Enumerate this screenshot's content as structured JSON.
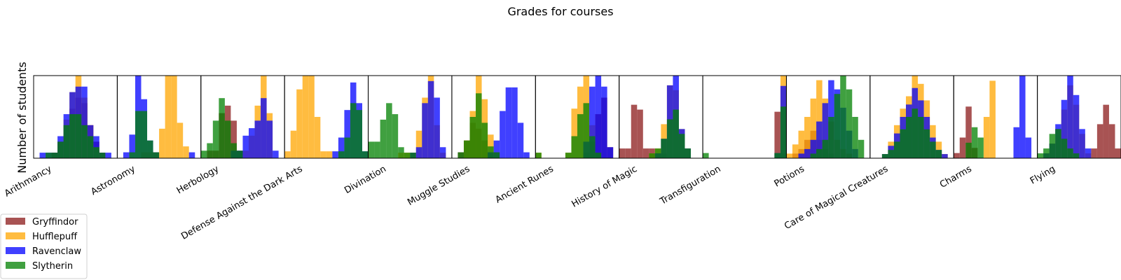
{
  "chart_data": {
    "type": "histogram",
    "title": "Grades for courses",
    "ylabel": "Number of students",
    "xlabel": "",
    "grid": false,
    "legend_position": "bottom-left",
    "series": [
      {
        "name": "Gryffindor",
        "color": "#8b1a1a"
      },
      {
        "name": "Hufflepuff",
        "color": "#ffa500"
      },
      {
        "name": "Ravenclaw",
        "color": "#0000ff"
      },
      {
        "name": "Slytherin",
        "color": "#008000"
      }
    ],
    "courses": [
      {
        "name": "Arithmancy",
        "bins": 14,
        "counts": [
          [
            0,
            0,
            0,
            1,
            3,
            6,
            9,
            11,
            10,
            6,
            3,
            1,
            0,
            0
          ],
          [
            0,
            0,
            0,
            1,
            3,
            7,
            12,
            15,
            11,
            6,
            2,
            1,
            0,
            0
          ],
          [
            0,
            1,
            1,
            1,
            4,
            8,
            12,
            13,
            13,
            6,
            4,
            1,
            1,
            0
          ],
          [
            0,
            0,
            1,
            1,
            3,
            6,
            8,
            8,
            6,
            4,
            2,
            1,
            0,
            0
          ]
        ]
      },
      {
        "name": "Astronomy",
        "bins": 14,
        "counts": [
          [
            0,
            0,
            0,
            0,
            0,
            0,
            0,
            0,
            0,
            0,
            0,
            0,
            0,
            0
          ],
          [
            0,
            0,
            0,
            0,
            1,
            1,
            1,
            5,
            14,
            14,
            6,
            2,
            0,
            0
          ],
          [
            0,
            1,
            4,
            14,
            10,
            3,
            1,
            0,
            0,
            0,
            0,
            0,
            1,
            0
          ],
          [
            0,
            0,
            1,
            8,
            8,
            3,
            1,
            0,
            0,
            0,
            0,
            0,
            0,
            0
          ]
        ]
      },
      {
        "name": "Herbology",
        "bins": 14,
        "counts": [
          [
            0,
            1,
            1,
            6,
            7,
            5,
            1,
            0,
            0,
            0,
            0,
            0,
            0,
            0
          ],
          [
            0,
            0,
            0,
            0,
            0,
            0,
            0,
            1,
            3,
            7,
            11,
            6,
            0,
            0
          ],
          [
            0,
            0,
            0,
            0,
            0,
            1,
            1,
            3,
            4,
            5,
            8,
            5,
            1,
            0
          ],
          [
            1,
            2,
            5,
            8,
            5,
            2,
            1,
            0,
            0,
            0,
            0,
            0,
            0,
            0
          ]
        ]
      },
      {
        "name": "Defense Against the Dark Arts",
        "bins": 14,
        "counts": [
          [
            0,
            0,
            0,
            0,
            0,
            0,
            0,
            0,
            0,
            0,
            0,
            0,
            0,
            0
          ],
          [
            1,
            4,
            10,
            12,
            12,
            6,
            1,
            1,
            0,
            0,
            0,
            0,
            0,
            0
          ],
          [
            0,
            0,
            0,
            0,
            0,
            0,
            0,
            0,
            1,
            3,
            7,
            11,
            8,
            1
          ],
          [
            0,
            0,
            0,
            0,
            0,
            0,
            0,
            0,
            0,
            1,
            3,
            8,
            7,
            1
          ]
        ]
      },
      {
        "name": "Divination",
        "bins": 14,
        "counts": [
          [
            0,
            0,
            0,
            0,
            0,
            0,
            0,
            0,
            0,
            0,
            0,
            0,
            0,
            0
          ],
          [
            0,
            0,
            0,
            0,
            0,
            1,
            1,
            1,
            5,
            11,
            15,
            6,
            1,
            0
          ],
          [
            0,
            0,
            0,
            0,
            0,
            0,
            0,
            1,
            2,
            10,
            14,
            11,
            2,
            0
          ],
          [
            3,
            3,
            7,
            10,
            8,
            2,
            1,
            1,
            0,
            0,
            0,
            0,
            0,
            0
          ]
        ]
      },
      {
        "name": "Muggle Studies",
        "bins": 14,
        "counts": [
          [
            0,
            1,
            3,
            6,
            5,
            3,
            1,
            0,
            0,
            0,
            0,
            0,
            0,
            0
          ],
          [
            0,
            0,
            3,
            8,
            14,
            10,
            4,
            1,
            0,
            0,
            0,
            0,
            0,
            0
          ],
          [
            0,
            0,
            0,
            0,
            0,
            0,
            1,
            3,
            8,
            12,
            12,
            6,
            1,
            0
          ],
          [
            0,
            1,
            3,
            7,
            11,
            6,
            2,
            1,
            0,
            0,
            0,
            0,
            0,
            0
          ]
        ]
      },
      {
        "name": "Ancient Runes",
        "bins": 14,
        "counts": [
          [
            0,
            0,
            0,
            0,
            0,
            0,
            0,
            0,
            1,
            3,
            8,
            11,
            2,
            0
          ],
          [
            1,
            0,
            0,
            0,
            0,
            1,
            9,
            13,
            15,
            6,
            1,
            0,
            0,
            0
          ],
          [
            0,
            0,
            0,
            0,
            0,
            0,
            0,
            0,
            3,
            13,
            15,
            13,
            2,
            0
          ],
          [
            1,
            0,
            0,
            0,
            0,
            1,
            4,
            8,
            10,
            4,
            1,
            0,
            0,
            0
          ]
        ]
      },
      {
        "name": "History of Magic",
        "bins": 14,
        "counts": [
          [
            2,
            2,
            11,
            10,
            2,
            2,
            1,
            1,
            0,
            0,
            0,
            0,
            0,
            0
          ],
          [
            0,
            0,
            0,
            0,
            0,
            1,
            2,
            7,
            15,
            14,
            6,
            2,
            0,
            0
          ],
          [
            0,
            0,
            0,
            0,
            0,
            0,
            1,
            4,
            15,
            17,
            6,
            2,
            0,
            0
          ],
          [
            0,
            0,
            0,
            0,
            0,
            1,
            2,
            4,
            8,
            10,
            5,
            2,
            0,
            0
          ]
        ]
      },
      {
        "name": "Transfiguration",
        "bins": 14,
        "counts": [
          [
            0,
            0,
            0,
            0,
            0,
            0,
            0,
            0,
            0,
            0,
            0,
            0,
            9,
            1
          ],
          [
            0,
            0,
            0,
            0,
            0,
            0,
            0,
            0,
            0,
            0,
            0,
            0,
            1,
            16
          ],
          [
            0,
            0,
            0,
            0,
            0,
            0,
            0,
            0,
            0,
            0,
            0,
            0,
            1,
            14
          ],
          [
            1,
            0,
            0,
            0,
            0,
            0,
            0,
            0,
            0,
            0,
            0,
            0,
            1,
            10
          ]
        ]
      },
      {
        "name": "Potions",
        "bins": 14,
        "counts": [
          [
            0,
            1,
            2,
            4,
            6,
            4,
            2,
            1,
            0,
            0,
            0,
            0,
            0,
            0
          ],
          [
            1,
            3,
            6,
            9,
            13,
            17,
            13,
            8,
            4,
            2,
            1,
            0,
            0,
            0
          ],
          [
            0,
            0,
            1,
            2,
            4,
            8,
            12,
            17,
            15,
            11,
            6,
            2,
            0,
            0
          ],
          [
            0,
            0,
            0,
            0,
            1,
            2,
            4,
            9,
            14,
            18,
            15,
            9,
            4,
            0
          ]
        ]
      },
      {
        "name": "Care of Magical Creatures",
        "bins": 14,
        "counts": [
          [
            0,
            0,
            0,
            0,
            0,
            0,
            0,
            0,
            0,
            0,
            0,
            0,
            0,
            0
          ],
          [
            0,
            0,
            1,
            4,
            8,
            12,
            15,
            20,
            18,
            14,
            8,
            4,
            1,
            0
          ],
          [
            0,
            0,
            1,
            3,
            6,
            10,
            13,
            17,
            14,
            10,
            5,
            2,
            1,
            0
          ],
          [
            0,
            0,
            1,
            2,
            4,
            7,
            10,
            12,
            10,
            7,
            4,
            2,
            0,
            0
          ]
        ]
      },
      {
        "name": "Charms",
        "bins": 14,
        "counts": [
          [
            1,
            4,
            10,
            2,
            0,
            0,
            0,
            0,
            0,
            0,
            0,
            0,
            0,
            0
          ],
          [
            0,
            0,
            0,
            0,
            0,
            8,
            15,
            0,
            0,
            0,
            0,
            0,
            0,
            0
          ],
          [
            0,
            0,
            0,
            0,
            0,
            0,
            0,
            0,
            0,
            0,
            6,
            16,
            4,
            0
          ],
          [
            0,
            0,
            3,
            6,
            4,
            0,
            0,
            0,
            0,
            0,
            0,
            0,
            0,
            0
          ]
        ]
      },
      {
        "name": "Flying",
        "bins": 14,
        "counts": [
          [
            0,
            0,
            0,
            0,
            0,
            0,
            0,
            0,
            0,
            2,
            7,
            11,
            7,
            2
          ],
          [
            0,
            1,
            3,
            6,
            10,
            15,
            11,
            5,
            1,
            0,
            0,
            0,
            0,
            0
          ],
          [
            0,
            1,
            3,
            7,
            12,
            17,
            13,
            6,
            2,
            0,
            0,
            0,
            0,
            0
          ],
          [
            1,
            2,
            5,
            6,
            4,
            2,
            1,
            0,
            0,
            0,
            0,
            0,
            0,
            0
          ]
        ]
      }
    ]
  }
}
